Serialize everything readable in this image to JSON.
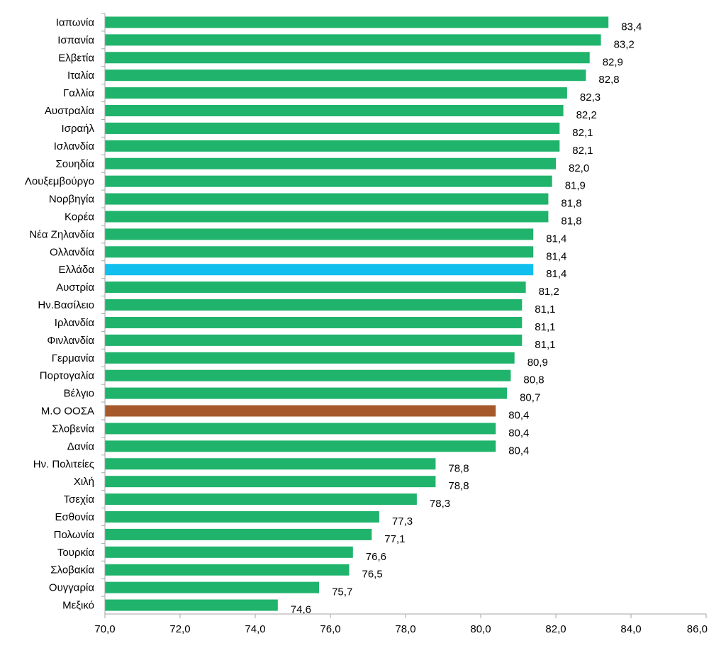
{
  "chart_data": {
    "type": "bar",
    "orientation": "horizontal",
    "categories": [
      "Ιαπωνία",
      "Ισπανία",
      "Ελβετία",
      "Ιταλία",
      "Γαλλία",
      "Αυστραλία",
      "Ισραήλ",
      "Ισλανδία",
      "Σουηδία",
      "Λουξεμβούργο",
      "Νορβηγία",
      "Κορέα",
      "Νέα Ζηλανδία",
      "Ολλανδία",
      "Ελλάδα",
      "Αυστρία",
      "Ην.Βασίλειο",
      "Ιρλανδία",
      "Φινλανδία",
      "Γερμανία",
      "Πορτογαλία",
      "Βέλγιο",
      "Μ.Ο ΟΟΣΑ",
      "Σλοβενία",
      "Δανία",
      "Ην. Πολιτείες",
      "Χιλή",
      "Τσεχία",
      "Εσθονία",
      "Πολωνία",
      "Τουρκία",
      "Σλοβακία",
      "Ουγγαρία",
      "Μεξικό"
    ],
    "values": [
      83.4,
      83.2,
      82.9,
      82.8,
      82.3,
      82.2,
      82.1,
      82.1,
      82.0,
      81.9,
      81.8,
      81.8,
      81.4,
      81.4,
      81.4,
      81.2,
      81.1,
      81.1,
      81.1,
      80.9,
      80.8,
      80.7,
      80.4,
      80.4,
      80.4,
      78.8,
      78.8,
      78.3,
      77.3,
      77.1,
      76.6,
      76.5,
      75.7,
      74.6
    ],
    "value_labels": [
      "83,4",
      "83,2",
      "82,9",
      "82,8",
      "82,3",
      "82,2",
      "82,1",
      "82,1",
      "82,0",
      "81,9",
      "81,8",
      "81,8",
      "81,4",
      "81,4",
      "81,4",
      "81,2",
      "81,1",
      "81,1",
      "81,1",
      "80,9",
      "80,8",
      "80,7",
      "80,4",
      "80,4",
      "80,4",
      "78,8",
      "78,8",
      "78,3",
      "77,3",
      "77,1",
      "76,6",
      "76,5",
      "75,7",
      "74,6"
    ],
    "xlim": [
      70.0,
      86.0
    ],
    "x_ticks": [
      70.0,
      72.0,
      74.0,
      76.0,
      78.0,
      80.0,
      82.0,
      84.0,
      86.0
    ],
    "x_tick_labels": [
      "70,0",
      "72,0",
      "74,0",
      "76,0",
      "78,0",
      "80,0",
      "82,0",
      "84,0",
      "86,0"
    ],
    "grid": false,
    "legend": "none",
    "colors": {
      "default": "#1fb36c",
      "highlights": {
        "Ελλάδα": "#11bfee",
        "Μ.Ο ΟΟΣΑ": "#a65a2b"
      },
      "axis": "#a6a6a6",
      "text": "#000000"
    }
  }
}
